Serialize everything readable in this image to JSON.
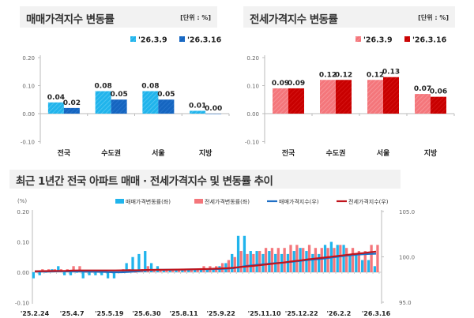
{
  "panels": {
    "sale": {
      "title": "매매가격지수 변동률",
      "unit": "[단위 : %]"
    },
    "jeonse": {
      "title": "전세가격지수 변동률",
      "unit": "[단위 : %]"
    },
    "trend": {
      "title": "최근 1년간 전국 아파트 매매 · 전세가격지수 및 변동률 추이"
    }
  },
  "colors": {
    "sale_prev": "#20b4ec",
    "sale_curr": "#1565c0",
    "jeonse_prev": "#f4767b",
    "jeonse_curr": "#c80000",
    "sale_line": "#1f6fc5",
    "jeonse_line": "#c0141c"
  },
  "chart_data": [
    {
      "type": "bar",
      "title": "매매가격지수 변동률",
      "categories": [
        "전국",
        "수도권",
        "서울",
        "지방"
      ],
      "series": [
        {
          "name": "'26.3.9",
          "values": [
            0.04,
            0.08,
            0.08,
            0.01
          ]
        },
        {
          "name": "'26.3.16",
          "values": [
            0.02,
            0.05,
            0.05,
            0.0
          ]
        }
      ],
      "ylim": [
        -0.1,
        0.2
      ],
      "yticks": [
        "0.20",
        "0.10",
        "0.00",
        "-0.10"
      ],
      "legend": "top-right"
    },
    {
      "type": "bar",
      "title": "전세가격지수 변동률",
      "categories": [
        "전국",
        "수도권",
        "서울",
        "지방"
      ],
      "series": [
        {
          "name": "'26.3.9",
          "values": [
            0.09,
            0.12,
            0.12,
            0.07
          ]
        },
        {
          "name": "'26.3.16",
          "values": [
            0.09,
            0.12,
            0.13,
            0.06
          ]
        }
      ],
      "ylim": [
        -0.1,
        0.2
      ],
      "yticks": [
        "0.20",
        "0.10",
        "0.00",
        "-0.10"
      ],
      "legend": "top-right"
    },
    {
      "type": "bar+line",
      "title": "최근 1년간 전국 아파트 매매 · 전세가격지수 및 변동률 추이",
      "ylabel": "(%)",
      "ylim": [
        -0.1,
        0.2
      ],
      "yticks": [
        "0.20",
        "0.10",
        "0.00",
        "-0.10"
      ],
      "y2lim": [
        95,
        105
      ],
      "y2ticks": [
        "105.0",
        "100.0",
        "95.0"
      ],
      "xticks": [
        {
          "i": 0,
          "label": "'25.2.24"
        },
        {
          "i": 6,
          "label": "'25.4.7"
        },
        {
          "i": 12,
          "label": "'25.5.19"
        },
        {
          "i": 18,
          "label": "'25.6.30"
        },
        {
          "i": 24,
          "label": "'25.8.11"
        },
        {
          "i": 30,
          "label": "'25.9.22"
        },
        {
          "i": 37,
          "label": "'25.11.10"
        },
        {
          "i": 43,
          "label": "'25.12.22"
        },
        {
          "i": 49,
          "label": "'26.2.2"
        },
        {
          "i": 55,
          "label": "'26.3.16"
        }
      ],
      "legend": "top",
      "series": [
        {
          "name": "매매가격변동률(좌)",
          "kind": "bar",
          "values": [
            -0.02,
            -0.01,
            0.0,
            0.01,
            0.02,
            -0.01,
            -0.01,
            0.0,
            -0.02,
            -0.01,
            -0.01,
            -0.01,
            -0.02,
            -0.02,
            0.0,
            0.03,
            0.05,
            0.06,
            0.07,
            0.03,
            0.02,
            0.01,
            0.01,
            0.01,
            0.01,
            0.01,
            0.01,
            0.01,
            0.01,
            0.01,
            0.02,
            0.03,
            0.06,
            0.12,
            0.12,
            0.07,
            0.07,
            0.06,
            0.07,
            0.06,
            0.06,
            0.06,
            0.07,
            0.08,
            0.07,
            0.06,
            0.06,
            0.09,
            0.1,
            0.09,
            0.09,
            0.06,
            0.06,
            0.04,
            0.04,
            0.02
          ]
        },
        {
          "name": "전세가격변동률(좌)",
          "kind": "bar",
          "values": [
            0.0,
            0.01,
            0.01,
            0.01,
            0.01,
            0.01,
            0.02,
            0.02,
            0.0,
            0.0,
            0.0,
            0.0,
            0.0,
            0.0,
            0.01,
            0.01,
            0.0,
            0.01,
            0.02,
            0.01,
            0.01,
            0.01,
            0.01,
            0.01,
            0.01,
            0.01,
            0.01,
            0.02,
            0.02,
            0.02,
            0.03,
            0.04,
            0.05,
            0.07,
            0.06,
            0.06,
            0.07,
            0.08,
            0.08,
            0.08,
            0.08,
            0.09,
            0.09,
            0.08,
            0.09,
            0.08,
            0.08,
            0.08,
            0.08,
            0.09,
            0.08,
            0.08,
            0.07,
            0.07,
            0.09,
            0.09
          ]
        },
        {
          "name": "매매가격지수(우)",
          "kind": "line",
          "values": [
            98.43,
            98.42,
            98.42,
            98.43,
            98.45,
            98.44,
            98.43,
            98.43,
            98.41,
            98.4,
            98.39,
            98.38,
            98.36,
            98.34,
            98.34,
            98.37,
            98.42,
            98.48,
            98.55,
            98.58,
            98.6,
            98.61,
            98.62,
            98.63,
            98.64,
            98.65,
            98.66,
            98.67,
            98.68,
            98.69,
            98.71,
            98.74,
            98.79,
            98.91,
            99.03,
            99.1,
            99.17,
            99.23,
            99.3,
            99.35,
            99.41,
            99.47,
            99.54,
            99.62,
            99.69,
            99.75,
            99.81,
            99.89,
            99.99,
            100.08,
            100.17,
            100.23,
            100.29,
            100.33,
            100.37,
            100.39
          ]
        },
        {
          "name": "전세가격지수(우)",
          "kind": "line",
          "values": [
            98.45,
            98.46,
            98.47,
            98.48,
            98.49,
            98.5,
            98.52,
            98.54,
            98.54,
            98.54,
            98.54,
            98.54,
            98.54,
            98.54,
            98.55,
            98.56,
            98.56,
            98.57,
            98.59,
            98.6,
            98.61,
            98.62,
            98.63,
            98.64,
            98.65,
            98.66,
            98.67,
            98.69,
            98.71,
            98.73,
            98.76,
            98.79,
            98.84,
            98.91,
            98.97,
            99.03,
            99.1,
            99.18,
            99.26,
            99.33,
            99.41,
            99.5,
            99.59,
            99.67,
            99.76,
            99.84,
            99.91,
            99.99,
            100.07,
            100.16,
            100.24,
            100.32,
            100.39,
            100.46,
            100.55,
            100.63
          ]
        }
      ]
    }
  ]
}
